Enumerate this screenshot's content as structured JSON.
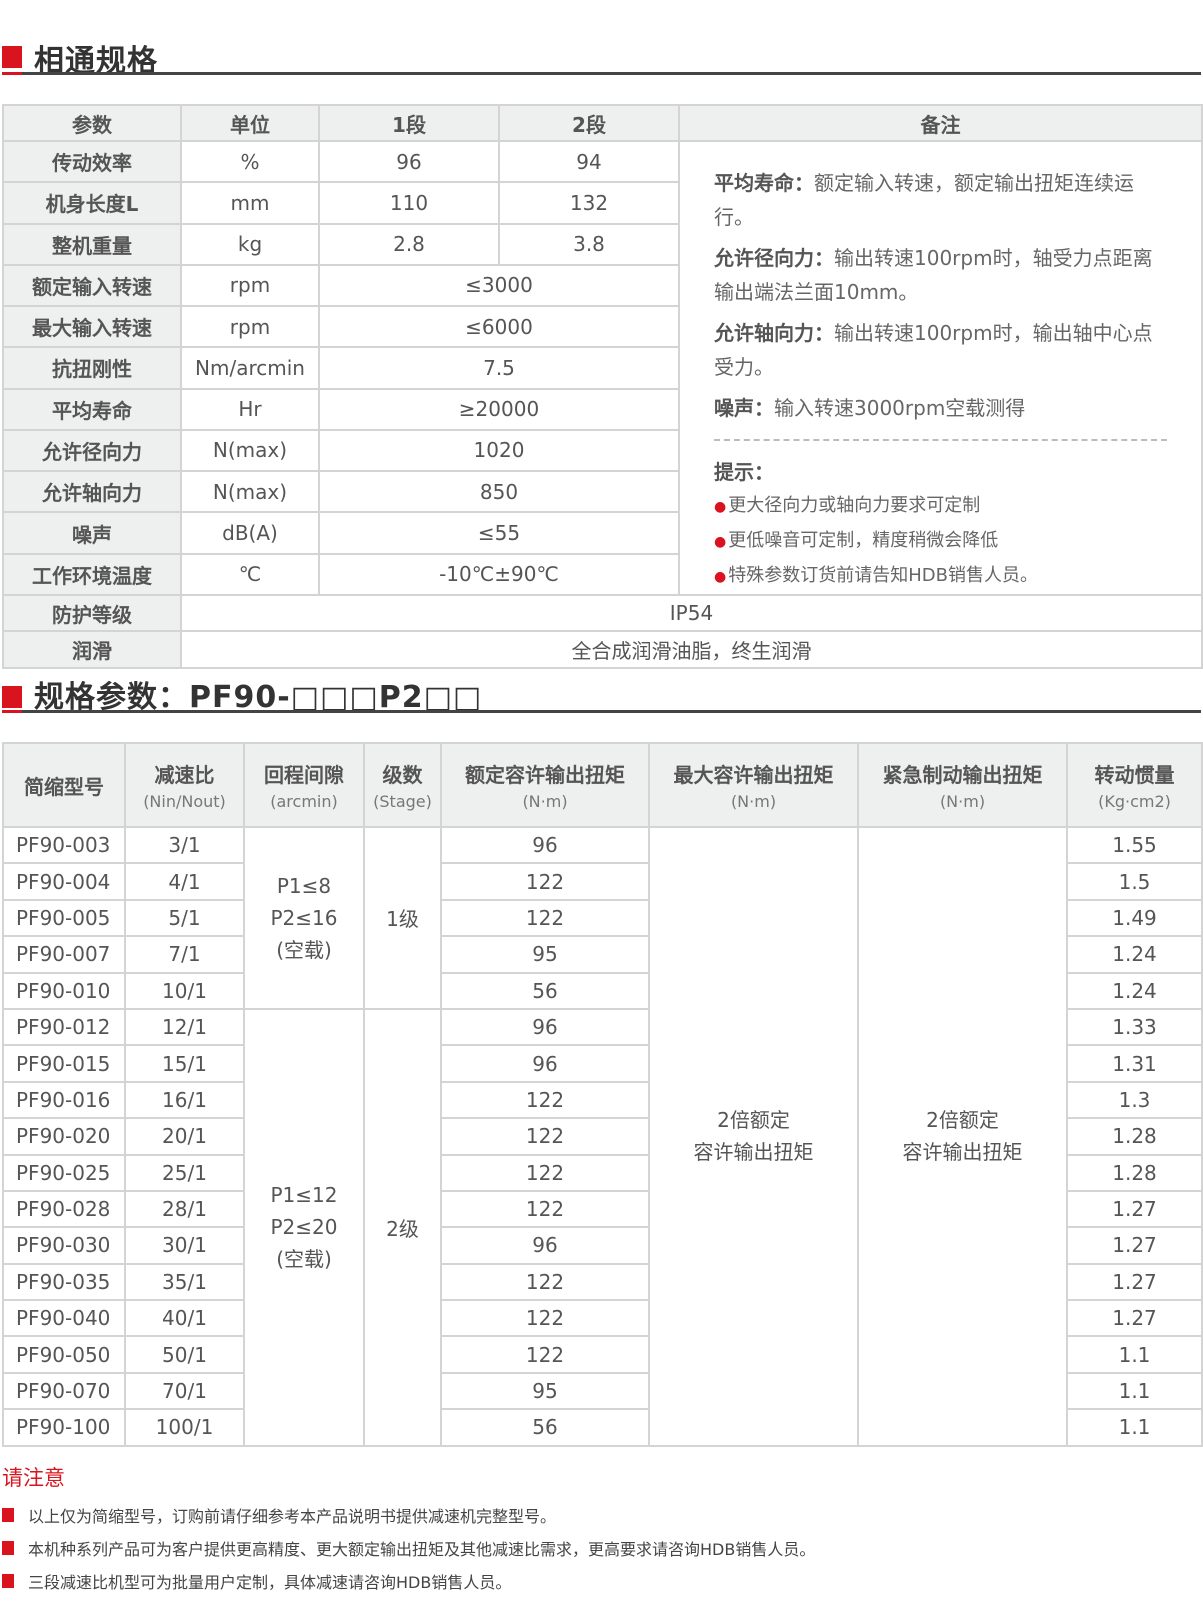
{
  "section1": {
    "title": "相通规格"
  },
  "common_table": {
    "headers": [
      "参数",
      "单位",
      "1段",
      "2段",
      "备注"
    ],
    "rows": [
      {
        "param": "传动效率",
        "unit": "%",
        "s1": "96",
        "s2": "94"
      },
      {
        "param": "机身长度L",
        "unit": "mm",
        "s1": "110",
        "s2": "132"
      },
      {
        "param": "整机重量",
        "unit": "kg",
        "s1": "2.8",
        "s2": "3.8"
      },
      {
        "param": "额定输入转速",
        "unit": "rpm",
        "both": "≤3000"
      },
      {
        "param": "最大输入转速",
        "unit": "rpm",
        "both": "≤6000"
      },
      {
        "param": "抗扭刚性",
        "unit": "Nm/arcmin",
        "both": "7.5"
      },
      {
        "param": "平均寿命",
        "unit": "Hr",
        "both": "≥20000"
      },
      {
        "param": "允许径向力",
        "unit": "N(max)",
        "both": "1020"
      },
      {
        "param": "允许轴向力",
        "unit": "N(max)",
        "both": "850"
      },
      {
        "param": "噪声",
        "unit": "dB(A)",
        "both": "≤55"
      },
      {
        "param": "工作环境温度",
        "unit": "℃",
        "both": "-10℃±90℃"
      },
      {
        "param": "防护等级",
        "all": "IP54"
      },
      {
        "param": "润滑",
        "all": "全合成润滑油脂，终生润滑"
      }
    ],
    "remarks": [
      {
        "label": "平均寿命：",
        "text": "额定输入转速，额定输出扭矩连续运行。"
      },
      {
        "label": "允许径向力：",
        "text": "输出转速100rpm时，轴受力点距离输出端法兰面10mm。"
      },
      {
        "label": "允许轴向力：",
        "text": "输出转速100rpm时，输出轴中心点受力。"
      },
      {
        "label": "噪声：",
        "text": "输入转速3000rpm空载测得"
      }
    ],
    "tips_title": "提示：",
    "tips": [
      "更大径向力或轴向力要求可定制",
      "更低噪音可定制，精度稍微会降低",
      "特殊参数订货前请告知HDB销售人员。"
    ]
  },
  "section2": {
    "title": "规格参数：PF90-□□□P2□□"
  },
  "spec_table": {
    "headers": [
      {
        "label": "简缩型号",
        "sub": ""
      },
      {
        "label": "减速比",
        "sub": "(Nin/Nout)"
      },
      {
        "label": "回程间隙",
        "sub": "(arcmin)"
      },
      {
        "label": "级数",
        "sub": "(Stage)"
      },
      {
        "label": "额定容许输出扭矩",
        "sub": "(N·m)"
      },
      {
        "label": "最大容许输出扭矩",
        "sub": "(N·m)"
      },
      {
        "label": "紧急制动输出扭矩",
        "sub": "(N·m)"
      },
      {
        "label": "转动惯量",
        "sub": "(Kg·cm2)"
      }
    ],
    "groups": [
      {
        "backlash": [
          "P1≤8",
          "P2≤16",
          "(空载)"
        ],
        "stage": "1级",
        "count": 5
      },
      {
        "backlash": [
          "P1≤12",
          "P2≤20",
          "(空载)"
        ],
        "stage": "2级",
        "count": 12
      }
    ],
    "max_torque": [
      "2倍额定",
      "容许输出扭矩"
    ],
    "emergency_torque": [
      "2倍额定",
      "容许输出扭矩"
    ],
    "rows": [
      {
        "model": "PF90-003",
        "ratio": "3/1",
        "torque": "96",
        "inertia": "1.55"
      },
      {
        "model": "PF90-004",
        "ratio": "4/1",
        "torque": "122",
        "inertia": "1.5"
      },
      {
        "model": "PF90-005",
        "ratio": "5/1",
        "torque": "122",
        "inertia": "1.49"
      },
      {
        "model": "PF90-007",
        "ratio": "7/1",
        "torque": "95",
        "inertia": "1.24"
      },
      {
        "model": "PF90-010",
        "ratio": "10/1",
        "torque": "56",
        "inertia": "1.24"
      },
      {
        "model": "PF90-012",
        "ratio": "12/1",
        "torque": "96",
        "inertia": "1.33"
      },
      {
        "model": "PF90-015",
        "ratio": "15/1",
        "torque": "96",
        "inertia": "1.31"
      },
      {
        "model": "PF90-016",
        "ratio": "16/1",
        "torque": "122",
        "inertia": "1.3"
      },
      {
        "model": "PF90-020",
        "ratio": "20/1",
        "torque": "122",
        "inertia": "1.28"
      },
      {
        "model": "PF90-025",
        "ratio": "25/1",
        "torque": "122",
        "inertia": "1.28"
      },
      {
        "model": "PF90-028",
        "ratio": "28/1",
        "torque": "122",
        "inertia": "1.27"
      },
      {
        "model": "PF90-030",
        "ratio": "30/1",
        "torque": "96",
        "inertia": "1.27"
      },
      {
        "model": "PF90-035",
        "ratio": "35/1",
        "torque": "122",
        "inertia": "1.27"
      },
      {
        "model": "PF90-040",
        "ratio": "40/1",
        "torque": "122",
        "inertia": "1.27"
      },
      {
        "model": "PF90-050",
        "ratio": "50/1",
        "torque": "122",
        "inertia": "1.1"
      },
      {
        "model": "PF90-070",
        "ratio": "70/1",
        "torque": "95",
        "inertia": "1.1"
      },
      {
        "model": "PF90-100",
        "ratio": "100/1",
        "torque": "56",
        "inertia": "1.1"
      }
    ]
  },
  "notes": {
    "title": "请注意",
    "items": [
      "以上仅为简缩型号，订购前请仔细参考本产品说明书提供减速机完整型号。",
      "本机种系列产品可为客户提供更高精度、更大额定输出扭矩及其他减速比需求，更高要求请咨询HDB销售人员。",
      "三段减速比机型可为批量用户定制，具体减速请咨询HDB销售人员。"
    ]
  },
  "colors": {
    "accent": "#d9141e",
    "header_bg": "#eeefef",
    "border": "#d4d4d4"
  }
}
